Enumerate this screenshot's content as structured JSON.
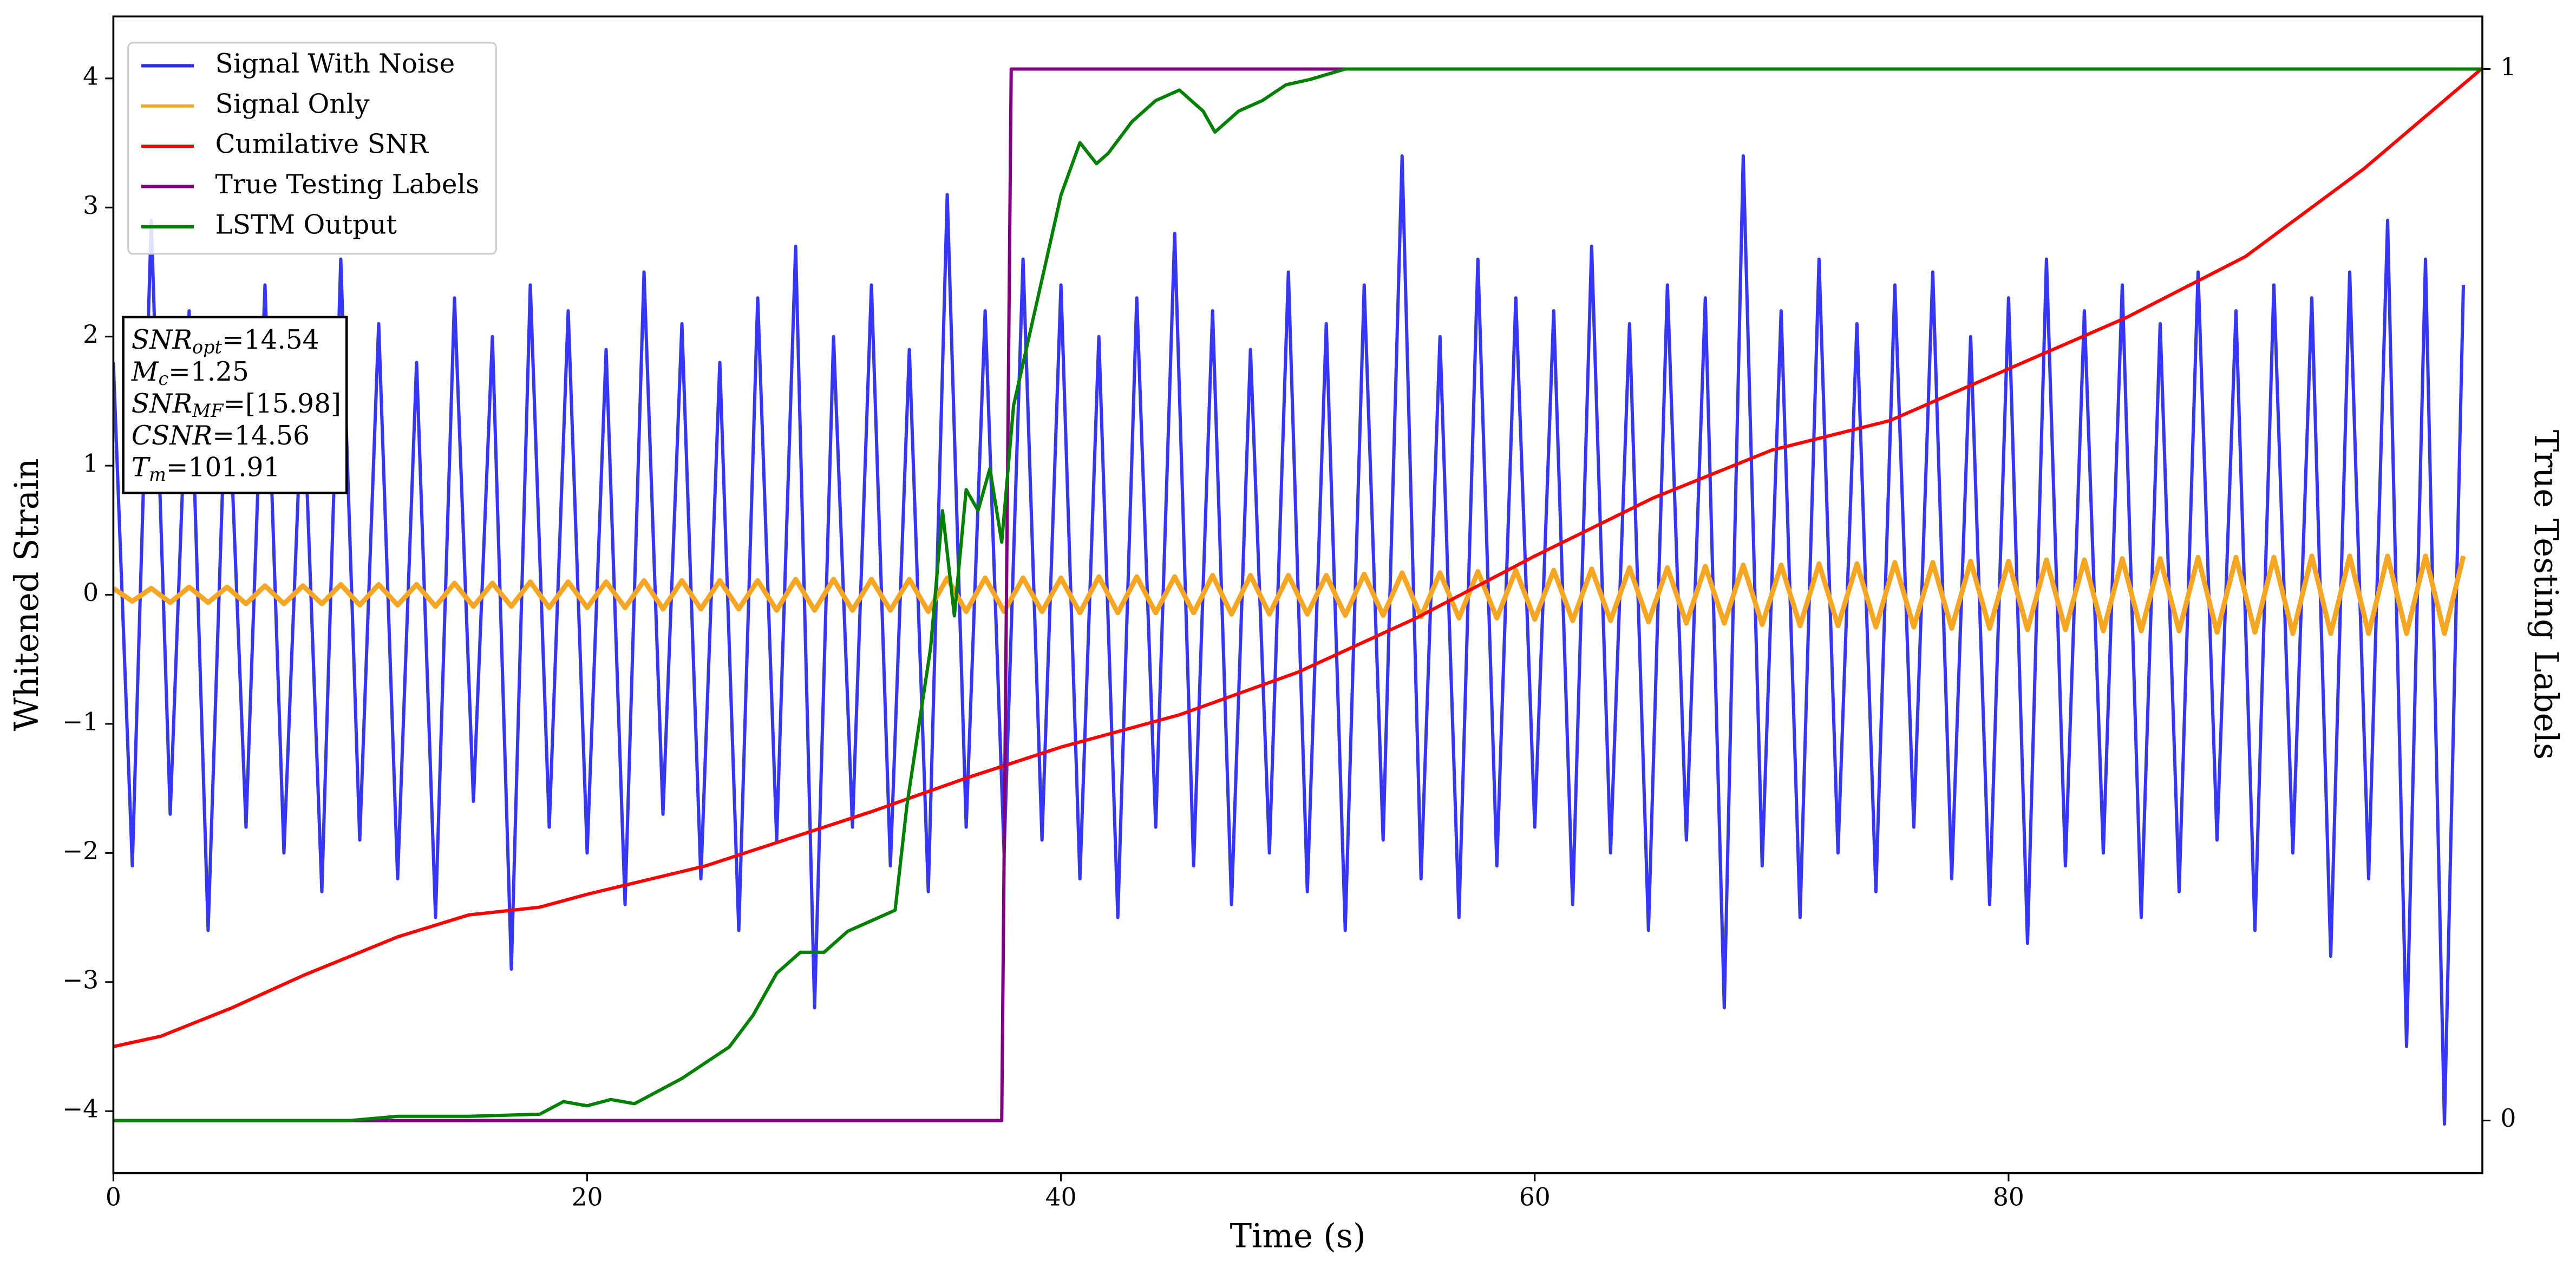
{
  "chart_data": {
    "type": "line",
    "xlabel": "Time (s)",
    "ylabel": "Whitened Strain",
    "y2label": "True Testing Labels",
    "legend": "upper left",
    "xlim": [
      0,
      100
    ],
    "xticks": [
      0,
      20,
      40,
      60,
      80
    ],
    "ylim": [
      -4.48,
      4.48
    ],
    "yticks": [
      -4,
      -3,
      -2,
      -1,
      0,
      1,
      2,
      3,
      4
    ],
    "y2lim": [
      -0.05,
      1.05
    ],
    "y2ticks": [
      0,
      1
    ],
    "x": [
      0,
      0.8,
      1.6,
      2.4,
      3.2,
      4,
      4.8,
      5.6,
      6.4,
      7.2,
      8,
      8.8,
      9.6,
      10.4,
      11.2,
      12,
      12.8,
      13.6,
      14.4,
      15.2,
      16,
      16.8,
      17.6,
      18.4,
      19.2,
      20,
      20.8,
      21.6,
      22.4,
      23.2,
      24,
      24.8,
      25.6,
      26.4,
      27.2,
      28,
      28.8,
      29.6,
      30.4,
      31.2,
      32,
      32.8,
      33.6,
      34.4,
      35.2,
      36,
      36.8,
      37.6,
      38.4,
      39.2,
      40,
      40.8,
      41.6,
      42.4,
      43.2,
      44,
      44.8,
      45.6,
      46.4,
      47.2,
      48,
      48.8,
      49.6,
      50.4,
      51.2,
      52,
      52.8,
      53.6,
      54.4,
      55.2,
      56,
      56.8,
      57.6,
      58.4,
      59.2,
      60,
      60.8,
      61.6,
      62.4,
      63.2,
      64,
      64.8,
      65.6,
      66.4,
      67.2,
      68,
      68.8,
      69.6,
      70.4,
      71.2,
      72,
      72.8,
      73.6,
      74.4,
      75.2,
      76,
      76.8,
      77.6,
      78.4,
      79.2,
      80,
      80.8,
      81.6,
      82.4,
      83.2,
      84,
      84.8,
      85.6,
      86.4,
      87.2,
      88,
      88.8,
      89.6,
      90.4,
      91.2,
      92,
      92.8,
      93.6,
      94.4,
      95.2,
      96,
      96.8,
      97.6,
      98.4,
      99.2
    ],
    "series": [
      {
        "name": "Signal With Noise",
        "color": "#2b2bf5",
        "values": [
          1.8,
          -2.1,
          2.9,
          -1.7,
          2.2,
          -2.6,
          1.9,
          -1.8,
          2.4,
          -2.0,
          1.7,
          -2.3,
          2.6,
          -1.9,
          2.1,
          -2.2,
          1.8,
          -2.5,
          2.3,
          -1.6,
          2.0,
          -2.9,
          2.4,
          -1.8,
          2.2,
          -2.0,
          1.9,
          -2.4,
          2.5,
          -1.7,
          2.1,
          -2.2,
          1.8,
          -2.6,
          2.3,
          -1.9,
          2.7,
          -3.2,
          2.0,
          -1.8,
          2.4,
          -2.1,
          1.9,
          -2.3,
          3.1,
          -1.8,
          2.2,
          -2.0,
          2.6,
          -1.9,
          2.4,
          -2.2,
          2.0,
          -2.5,
          2.3,
          -1.8,
          2.8,
          -2.1,
          2.2,
          -2.4,
          1.9,
          -2.0,
          2.5,
          -2.3,
          2.1,
          -2.6,
          2.4,
          -1.9,
          3.4,
          -2.2,
          2.0,
          -2.5,
          2.6,
          -2.1,
          2.3,
          -1.8,
          2.2,
          -2.4,
          2.7,
          -2.0,
          2.1,
          -2.6,
          2.4,
          -1.9,
          2.3,
          -3.2,
          3.4,
          -2.1,
          2.2,
          -2.5,
          2.6,
          -2.0,
          2.1,
          -2.3,
          2.4,
          -1.8,
          2.5,
          -2.2,
          2.0,
          -2.4,
          2.3,
          -2.7,
          2.6,
          -2.1,
          2.2,
          -2.0,
          2.4,
          -2.5,
          2.1,
          -2.3,
          2.5,
          -1.9,
          2.2,
          -2.6,
          2.4,
          -2.0,
          2.3,
          -2.8,
          2.5,
          -2.2,
          2.9,
          -3.5,
          2.6,
          -4.1,
          2.4
        ]
      },
      {
        "name": "Signal Only",
        "color": "#f5a623",
        "values": [
          0.05,
          -0.05,
          0.05,
          -0.06,
          0.06,
          -0.06,
          0.06,
          -0.07,
          0.07,
          -0.07,
          0.07,
          -0.07,
          0.08,
          -0.08,
          0.08,
          -0.08,
          0.08,
          -0.09,
          0.09,
          -0.09,
          0.09,
          -0.09,
          0.1,
          -0.1,
          0.1,
          -0.1,
          0.1,
          -0.1,
          0.11,
          -0.11,
          0.11,
          -0.11,
          0.11,
          -0.11,
          0.11,
          -0.12,
          0.12,
          -0.12,
          0.12,
          -0.12,
          0.12,
          -0.12,
          0.12,
          -0.13,
          0.13,
          -0.13,
          0.13,
          -0.13,
          0.13,
          -0.13,
          0.13,
          -0.14,
          0.14,
          -0.14,
          0.14,
          -0.14,
          0.14,
          -0.14,
          0.15,
          -0.15,
          0.15,
          -0.15,
          0.15,
          -0.15,
          0.15,
          -0.16,
          0.16,
          -0.16,
          0.17,
          -0.17,
          0.17,
          -0.18,
          0.18,
          -0.18,
          0.19,
          -0.19,
          0.19,
          -0.2,
          0.2,
          -0.2,
          0.21,
          -0.21,
          0.21,
          -0.22,
          0.22,
          -0.22,
          0.23,
          -0.23,
          0.23,
          -0.24,
          0.24,
          -0.24,
          0.24,
          -0.25,
          0.25,
          -0.25,
          0.25,
          -0.26,
          0.26,
          -0.26,
          0.26,
          -0.27,
          0.27,
          -0.27,
          0.27,
          -0.28,
          0.28,
          -0.28,
          0.28,
          -0.28,
          0.29,
          -0.29,
          0.29,
          -0.29,
          0.29,
          -0.3,
          0.3,
          -0.3,
          0.3,
          -0.3,
          0.3,
          -0.3,
          0.3,
          -0.3,
          0.3
        ]
      },
      {
        "name": "Cumilative SNR",
        "color": "#ff0000",
        "x": [
          0,
          2,
          5,
          8,
          12,
          15,
          18,
          20,
          25,
          28,
          32,
          36,
          40,
          45,
          50,
          55,
          60,
          65,
          70,
          75,
          80,
          85,
          90,
          95,
          100
        ],
        "values": [
          -3.5,
          -3.42,
          -3.2,
          -2.95,
          -2.65,
          -2.48,
          -2.42,
          -2.32,
          -2.1,
          -1.92,
          -1.68,
          -1.42,
          -1.18,
          -0.93,
          -0.6,
          -0.18,
          0.3,
          0.75,
          1.12,
          1.35,
          1.75,
          2.15,
          2.62,
          3.3,
          4.08
        ]
      },
      {
        "name": "True Testing Labels",
        "color": "#800080",
        "axis": "y2",
        "x": [
          0,
          37.5,
          37.9,
          100
        ],
        "values": [
          0,
          0,
          1,
          1
        ]
      },
      {
        "name": "LSTM Output",
        "color": "#008000",
        "axis": "y2",
        "x": [
          0,
          10,
          12,
          15,
          18,
          19,
          20,
          21,
          22,
          24,
          26,
          27,
          28,
          29,
          30,
          31,
          32,
          33,
          33.5,
          34.5,
          35,
          35.5,
          36,
          36.5,
          37,
          37.5,
          38,
          39,
          40,
          40.8,
          41.5,
          42,
          43,
          44,
          45,
          46,
          46.5,
          47.5,
          48.5,
          49.5,
          50.5,
          52,
          55,
          58,
          100
        ],
        "values": [
          0,
          0,
          0.004,
          0.004,
          0.006,
          0.018,
          0.014,
          0.02,
          0.016,
          0.04,
          0.07,
          0.1,
          0.14,
          0.16,
          0.16,
          0.18,
          0.19,
          0.2,
          0.3,
          0.45,
          0.58,
          0.48,
          0.6,
          0.58,
          0.62,
          0.55,
          0.68,
          0.78,
          0.88,
          0.93,
          0.91,
          0.92,
          0.95,
          0.97,
          0.98,
          0.96,
          0.94,
          0.96,
          0.97,
          0.985,
          0.99,
          1.0,
          1.0,
          1.0,
          1.0
        ]
      }
    ],
    "annotation": {
      "lines": [
        {
          "name": "SNR",
          "sub": "opt",
          "text": "=14.54"
        },
        {
          "name": "M",
          "sub": "c",
          "text": "=1.25"
        },
        {
          "name": "SNR",
          "sub": "MF",
          "text": "=[15.98]"
        },
        {
          "name": "CSNR",
          "text": "=14.56"
        },
        {
          "name": "T",
          "sub": "m",
          "text": "=101.91"
        }
      ]
    }
  }
}
